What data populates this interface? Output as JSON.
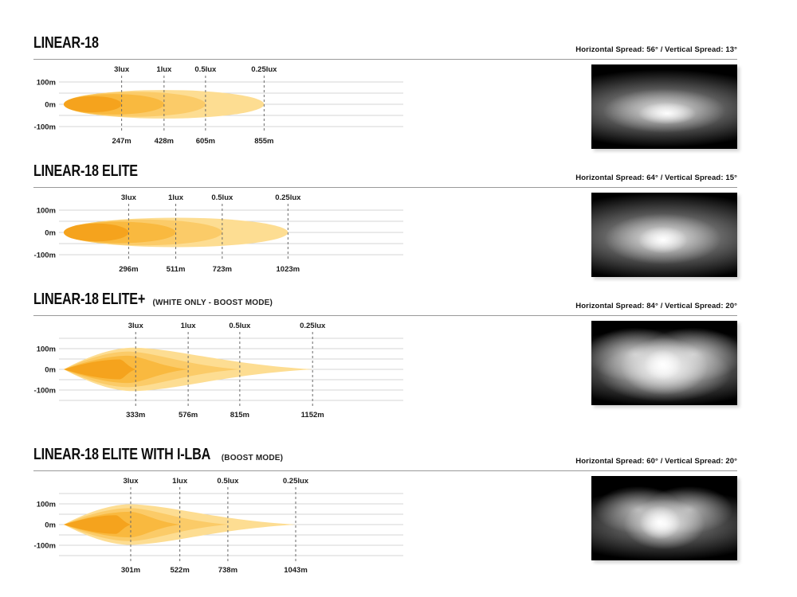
{
  "page": {
    "background": "#ffffff"
  },
  "beam_colors": [
    "#F5A31D",
    "#F9B93F",
    "#FBCB68",
    "#FDDD92"
  ],
  "sections": [
    {
      "title": "LINEAR-18",
      "subtitle": "",
      "spread": "Horizontal Spread: 56° / Vertical Spread: 13°"
    },
    {
      "title": "LINEAR-18 ELITE",
      "subtitle": "",
      "spread": "Horizontal Spread: 64° / Vertical Spread: 15°"
    },
    {
      "title": "LINEAR-18 ELITE+",
      "subtitle": "(WHITE ONLY - BOOST MODE)",
      "spread": "Horizontal Spread: 84° / Vertical Spread: 20°"
    },
    {
      "title": "LINEAR-18 ELITE WITH I-LBA",
      "subtitle": "(BOOST MODE)",
      "spread": "Horizontal Spread: 60° / Vertical Spread: 20°"
    }
  ],
  "chart_data": [
    {
      "type": "area",
      "title": "LINEAR-18",
      "shape": "ellipse",
      "lux_labels": [
        "3lux",
        "1lux",
        "0.5lux",
        "0.25lux"
      ],
      "lux_values": [
        3,
        1,
        0.5,
        0.25
      ],
      "distances_m": [
        247,
        428,
        605,
        855
      ],
      "distance_labels": [
        "247m",
        "428m",
        "605m",
        "855m"
      ],
      "beam_half_height_m": [
        36,
        46,
        56,
        64
      ],
      "y_tick_labels": [
        "100m",
        "0m",
        "-100m"
      ],
      "ylim_m": [
        -100,
        100
      ],
      "grid_step_m": 50,
      "horizontal_spread_deg": 56,
      "vertical_spread_deg": 13
    },
    {
      "type": "area",
      "title": "LINEAR-18 ELITE",
      "shape": "ellipse",
      "lux_labels": [
        "3lux",
        "1lux",
        "0.5lux",
        "0.25lux"
      ],
      "lux_values": [
        3,
        1,
        0.5,
        0.25
      ],
      "distances_m": [
        296,
        511,
        723,
        1023
      ],
      "distance_labels": [
        "296m",
        "511m",
        "723m",
        "1023m"
      ],
      "beam_half_height_m": [
        40,
        48,
        58,
        66
      ],
      "y_tick_labels": [
        "100m",
        "0m",
        "-100m"
      ],
      "ylim_m": [
        -100,
        100
      ],
      "grid_step_m": 50,
      "horizontal_spread_deg": 64,
      "vertical_spread_deg": 15
    },
    {
      "type": "area",
      "title": "LINEAR-18 ELITE+ (WHITE ONLY - BOOST MODE)",
      "shape": "pointed",
      "lux_labels": [
        "3lux",
        "1lux",
        "0.5lux",
        "0.25lux"
      ],
      "lux_values": [
        3,
        1,
        0.5,
        0.25
      ],
      "distances_m": [
        333,
        576,
        815,
        1152
      ],
      "distance_labels": [
        "333m",
        "576m",
        "815m",
        "1152m"
      ],
      "beam_half_height_m": [
        48,
        66,
        86,
        105
      ],
      "y_tick_labels": [
        "100m",
        "0m",
        "-100m"
      ],
      "ylim_m": [
        -150,
        150
      ],
      "grid_step_m": 50,
      "horizontal_spread_deg": 84,
      "vertical_spread_deg": 20
    },
    {
      "type": "area",
      "title": "LINEAR-18 ELITE WITH I-LBA (BOOST MODE)",
      "shape": "pointed",
      "lux_labels": [
        "3lux",
        "1lux",
        "0.5lux",
        "0.25lux"
      ],
      "lux_values": [
        3,
        1,
        0.5,
        0.25
      ],
      "distances_m": [
        301,
        522,
        738,
        1043
      ],
      "distance_labels": [
        "301m",
        "522m",
        "738m",
        "1043m"
      ],
      "beam_half_height_m": [
        45,
        62,
        80,
        98
      ],
      "y_tick_labels": [
        "100m",
        "0m",
        "-100m"
      ],
      "ylim_m": [
        -150,
        150
      ],
      "grid_step_m": 50,
      "horizontal_spread_deg": 60,
      "vertical_spread_deg": 20
    }
  ],
  "photos": [
    {
      "description": "wide oval beam, small bright hotspot"
    },
    {
      "description": "wide oval beam, larger bright hotspot"
    },
    {
      "description": "twin-lobe wide beam, large bright center"
    },
    {
      "description": "twin-lobe wide beam, bright center hotspot"
    }
  ]
}
